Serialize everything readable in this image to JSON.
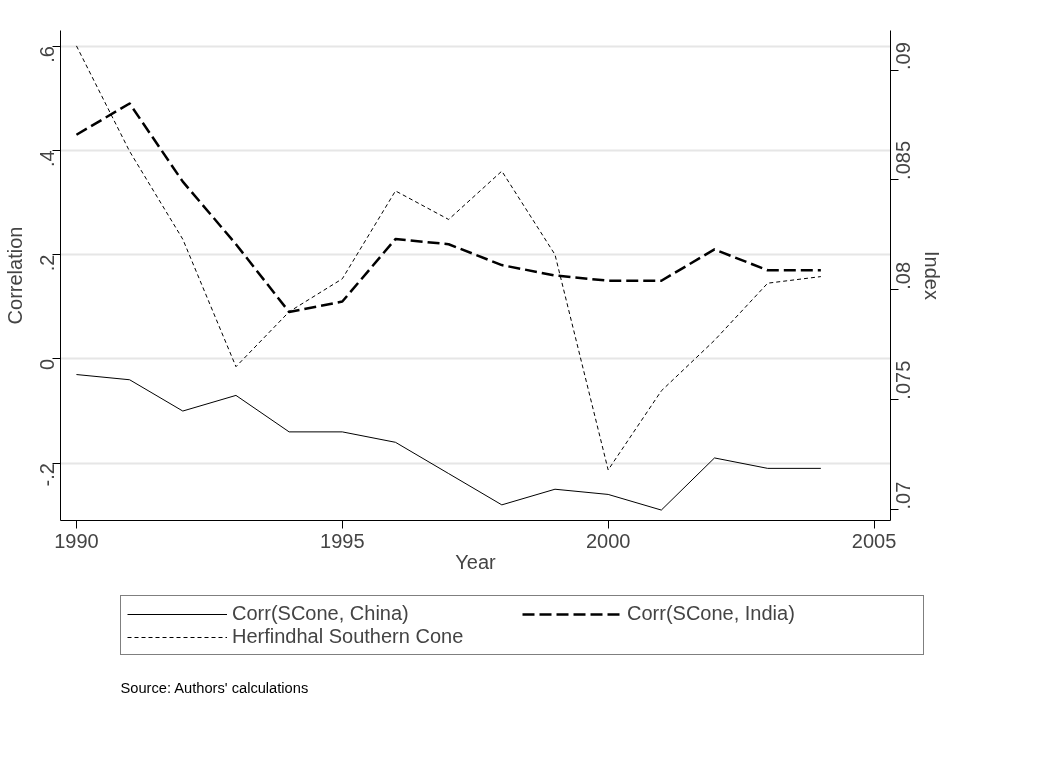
{
  "chart_data": {
    "type": "line",
    "xlabel": "Year",
    "ylabel": "Correlation",
    "y2label": "Index",
    "x": [
      1990,
      1991,
      1992,
      1993,
      1994,
      1995,
      1996,
      1997,
      1998,
      1999,
      2000,
      2001,
      2002,
      2003,
      2004
    ],
    "series": [
      {
        "name": "Corr(SCone, China)",
        "color": "#000000",
        "line_style": "solid",
        "values": [
          -0.03,
          -0.04,
          -0.1,
          -0.07,
          -0.14,
          -0.14,
          -0.16,
          -0.22,
          -0.28,
          -0.25,
          -0.26,
          -0.29,
          -0.19,
          -0.21,
          -0.21
        ]
      },
      {
        "name": "Corr(SCone, India)",
        "color": "#000000",
        "line_style": "dashed",
        "values": [
          0.43,
          0.49,
          0.34,
          0.22,
          0.09,
          0.11,
          0.23,
          0.22,
          0.18,
          0.16,
          0.15,
          0.15,
          0.21,
          0.17,
          0.17
        ]
      },
      {
        "name": "Herfindhal Southern Cone",
        "color": "#000000",
        "line_style": "dashed",
        "axis": "y2",
        "values": [
          0.0911,
          0.0863,
          0.0823,
          0.0765,
          0.079,
          0.0805,
          0.0845,
          0.0832,
          0.0854,
          0.0816,
          0.0718,
          0.0754,
          0.0777,
          0.0803,
          0.0806
        ]
      }
    ],
    "xlim": [
      1989.7,
      2005.31
    ],
    "xticks": [
      1990,
      1995,
      2000,
      2005
    ],
    "ylim": [
      -0.31,
      0.63
    ],
    "yticks": [
      {
        "value": -0.2,
        "label": "-.2"
      },
      0,
      {
        "value": 0.2,
        "label": ".2"
      },
      {
        "value": 0.4,
        "label": ".4"
      },
      {
        "value": 0.6,
        "label": ".6"
      }
    ],
    "y2lim": [
      0.0695,
      0.0918
    ],
    "y2ticks": [
      {
        "value": 0.07,
        "label": ".07"
      },
      {
        "value": 0.075,
        "label": ".075"
      },
      {
        "value": 0.08,
        "label": ".08"
      },
      {
        "value": 0.085,
        "label": ".085"
      },
      {
        "value": 0.09,
        "label": ".09"
      }
    ],
    "grid": "y",
    "legend": "bottom",
    "marker": "none",
    "annotations": [
      "Source: Authors' calculations"
    ]
  }
}
